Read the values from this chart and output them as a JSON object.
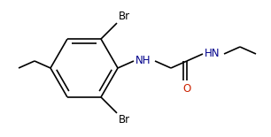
{
  "bg_color": "#ffffff",
  "bond_color": "#000000",
  "label_color_nh": "#00008b",
  "label_color_o": "#cc2200",
  "figsize": [
    3.06,
    1.55
  ],
  "dpi": 100,
  "font_size": 8.5,
  "lw": 1.2,
  "br_top_label": "Br",
  "br_bot_label": "Br",
  "nh_label": "NH",
  "hn_label": "HN",
  "o_label": "O"
}
